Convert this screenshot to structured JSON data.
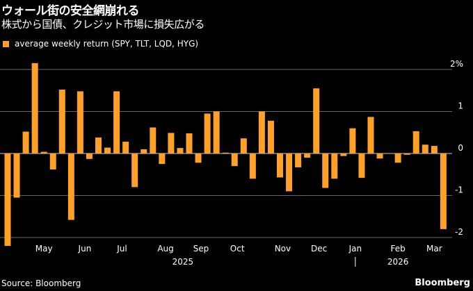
{
  "title": "ウォール街の安全網崩れる",
  "subtitle": "株式から国債、クレジット市場に損失広がる",
  "source": "Source: Bloomberg",
  "brand": "Bloomberg",
  "colors": {
    "bar": "#ffa028",
    "grid": "#8a8a8a",
    "background": "#000000",
    "text": "#ffffff"
  },
  "chart_data": {
    "type": "bar",
    "legend": [
      "average weekly return (SPY, TLT, LQD, HYG)"
    ],
    "ylabel": "",
    "ylim": [
      -2.2,
      2.2
    ],
    "y_ticks": [
      {
        "value": 2,
        "label": "2%"
      },
      {
        "value": 1,
        "label": "1"
      },
      {
        "value": 0,
        "label": "0"
      },
      {
        "value": -1,
        "label": "-1"
      },
      {
        "value": -2,
        "label": "-2"
      }
    ],
    "month_labels": [
      {
        "label": "May",
        "week": 4
      },
      {
        "label": "Jun",
        "week": 8.5
      },
      {
        "label": "Jul",
        "week": 12.6
      },
      {
        "label": "Aug",
        "week": 17.4
      },
      {
        "label": "Sep",
        "week": 21.3
      },
      {
        "label": "Oct",
        "week": 25.3
      },
      {
        "label": "Nov",
        "week": 30.3
      },
      {
        "label": "Dec",
        "week": 34.3
      },
      {
        "label": "Jan",
        "week": 38.3
      },
      {
        "label": "Feb",
        "week": 43
      },
      {
        "label": "Mar",
        "week": 47
      }
    ],
    "year_labels": [
      {
        "label": "2025",
        "week": 19.3
      },
      {
        "label": "2026",
        "week": 43
      }
    ],
    "year_divider_week": 38.3,
    "values": [
      -2.2,
      -1.05,
      0.52,
      2.15,
      0.04,
      -0.38,
      1.52,
      -1.58,
      1.48,
      -0.13,
      0.38,
      0.14,
      1.48,
      0.28,
      -0.8,
      0.1,
      0.62,
      -0.25,
      0.49,
      0.13,
      0.48,
      -0.22,
      0.95,
      1.0,
      0.02,
      -0.3,
      0.36,
      -0.6,
      1.0,
      0.78,
      -0.57,
      -0.9,
      -0.33,
      -0.1,
      1.55,
      -0.82,
      -0.6,
      -0.06,
      0.6,
      -0.58,
      0.87,
      -0.12,
      0.01,
      -0.22,
      -0.03,
      0.53,
      0.21,
      0.18,
      -1.8
    ]
  }
}
